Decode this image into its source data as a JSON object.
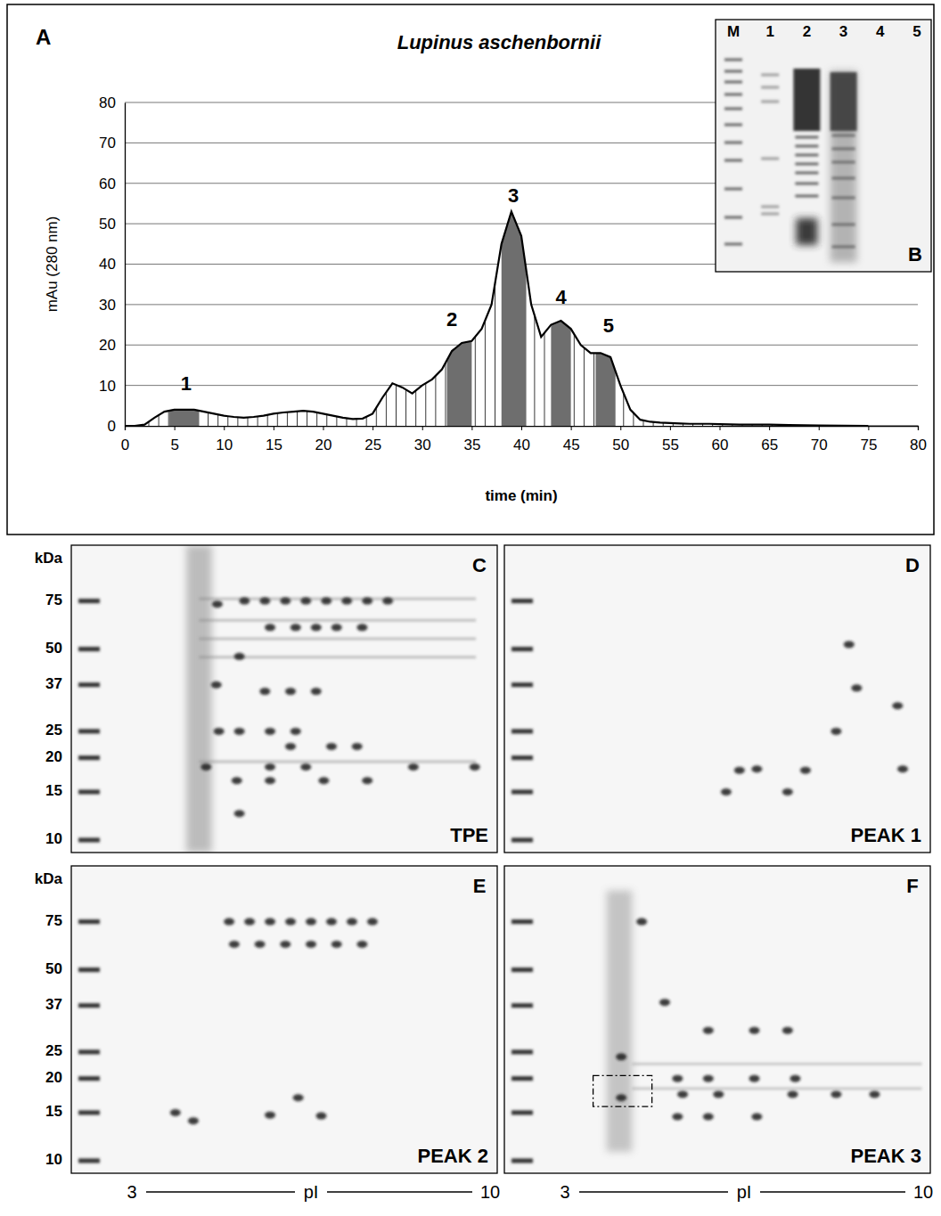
{
  "panel_letter": "A",
  "chart_data": {
    "type": "line",
    "title": "Lupinus aschenbornii",
    "xlabel": "time (min)",
    "ylabel": "mAu (280 nm)",
    "x": [
      0,
      1,
      2,
      3,
      4,
      5,
      6,
      7,
      8,
      9,
      10,
      11,
      12,
      13,
      14,
      15,
      16,
      17,
      18,
      19,
      20,
      21,
      22,
      23,
      24,
      25,
      26,
      27,
      28,
      29,
      30,
      31,
      32,
      33,
      34,
      35,
      36,
      37,
      38,
      39,
      40,
      41,
      42,
      43,
      44,
      45,
      46,
      47,
      48,
      49,
      50,
      51,
      52,
      53,
      54,
      55,
      56,
      57,
      58,
      59,
      60,
      62,
      65,
      67,
      70,
      75
    ],
    "values": [
      0,
      0,
      0.3,
      2,
      3.5,
      4,
      4,
      4,
      3.5,
      3,
      2.5,
      2.2,
      2,
      2.2,
      2.5,
      3,
      3.3,
      3.5,
      3.7,
      3.5,
      3,
      2.5,
      2,
      1.7,
      1.8,
      3,
      7,
      10.5,
      9.5,
      8,
      10,
      11.5,
      14,
      18.5,
      20.5,
      21,
      24,
      30,
      45,
      53,
      47,
      30,
      22,
      25,
      26,
      24,
      20,
      18,
      18,
      17,
      10,
      4,
      1.5,
      1,
      0.8,
      0.7,
      0.6,
      0.5,
      0.5,
      0.5,
      0.4,
      0.3,
      0.3,
      0.2,
      0.1,
      0
    ],
    "xlim": [
      0,
      80
    ],
    "xticks": [
      0,
      5,
      10,
      15,
      20,
      25,
      30,
      35,
      40,
      45,
      50,
      55,
      60,
      65,
      70,
      75,
      80
    ],
    "ylim": [
      0,
      80
    ],
    "yticks": [
      0,
      10,
      20,
      30,
      40,
      50,
      60,
      70,
      80
    ],
    "grid": true,
    "annotations": [
      {
        "text": "1",
        "x": 6.2,
        "y": 10,
        "fraction": [
          4.5,
          7.5
        ]
      },
      {
        "text": "2",
        "x": 33,
        "y": 26,
        "fraction": [
          32.5,
          35
        ]
      },
      {
        "text": "3",
        "x": 39.2,
        "y": 56.5,
        "fraction": [
          38,
          40.5
        ]
      },
      {
        "text": "4",
        "x": 44,
        "y": 31.5,
        "fraction": [
          43,
          45
        ]
      },
      {
        "text": "5",
        "x": 48.8,
        "y": 24.5,
        "fraction": [
          47.5,
          49.5
        ]
      }
    ]
  },
  "inset": {
    "letter": "B",
    "lanes": [
      "M",
      "1",
      "2",
      "3",
      "4",
      "5"
    ]
  },
  "gels": [
    {
      "letter": "C",
      "name": "TPE",
      "type": "scatter",
      "ylabel": "kDa",
      "log": "y",
      "ylim": [
        9,
        120
      ],
      "yticks": [
        75,
        50,
        37,
        25,
        20,
        15,
        10
      ],
      "xlim": [
        3,
        10
      ],
      "xticks": [
        3,
        10
      ],
      "tick_labels": "y",
      "spots": {
        "pI": [
          4.45,
          4.65,
          4.67,
          5.2,
          5.6,
          6.0,
          6.4,
          6.8,
          7.2,
          7.6,
          8.0,
          5.7,
          6.2,
          6.6,
          7.0,
          7.5,
          5.1,
          5.6,
          6.1,
          6.6,
          4.7,
          5.1,
          5.7,
          6.2,
          6.1,
          6.9,
          7.4,
          5.7,
          6.4,
          8.5,
          9.7,
          5.05,
          5.7,
          6.75,
          7.6,
          5.1
        ],
        "kda": [
          18.5,
          37,
          73,
          75,
          75,
          75,
          75,
          75,
          75,
          75,
          75,
          60,
          60,
          60,
          60,
          60,
          47,
          35,
          35,
          35,
          25,
          25,
          25,
          25,
          22,
          22,
          22,
          18.5,
          18.5,
          18.5,
          18.5,
          16.5,
          16.5,
          16.5,
          16.5,
          12.5
        ]
      }
    },
    {
      "letter": "D",
      "name": "PEAK 1",
      "type": "scatter",
      "log": "y",
      "ylim": [
        9,
        120
      ],
      "yticks": [
        75,
        50,
        37,
        25,
        20,
        15,
        10
      ],
      "xlim": [
        3,
        10
      ],
      "xticks": [
        3,
        10
      ],
      "tick_labels": false,
      "spots": {
        "pI": [
          6.41,
          6.75,
          7.7,
          9.6,
          6.15,
          7.35,
          8.55,
          8.7,
          9.5,
          8.3
        ],
        "kda": [
          18,
          18.2,
          18,
          18.2,
          15,
          15,
          52,
          36,
          31,
          25
        ]
      }
    },
    {
      "letter": "E",
      "name": "PEAK 2",
      "type": "scatter",
      "ylabel": "kDa",
      "xlabel": "pI",
      "log": "y",
      "ylim": [
        9,
        120
      ],
      "yticks": [
        75,
        50,
        37,
        25,
        20,
        15,
        10
      ],
      "xlim": [
        3,
        10
      ],
      "xticks": [
        3,
        10
      ],
      "tick_labels": true,
      "spots": {
        "pI": [
          4.9,
          5.3,
          5.7,
          6.1,
          6.5,
          6.9,
          7.3,
          7.7,
          5.0,
          5.5,
          6.0,
          6.5,
          7.0,
          7.5,
          6.25,
          5.7,
          6.7,
          4.2,
          3.85
        ],
        "kda": [
          75,
          75,
          75,
          75,
          75,
          75,
          75,
          75,
          62,
          62,
          62,
          62,
          62,
          62,
          17,
          14.7,
          14.6,
          14,
          15
        ]
      }
    },
    {
      "letter": "F",
      "name": "PEAK 3",
      "type": "scatter",
      "xlabel": "pI",
      "log": "y",
      "ylim": [
        9,
        120
      ],
      "yticks": [
        75,
        50,
        37,
        25,
        20,
        15,
        10
      ],
      "xlim": [
        3,
        10
      ],
      "xticks": [
        3,
        10
      ],
      "tick_labels": "x",
      "spots": {
        "pI": [
          4.5,
          4.95,
          4.1,
          4.1,
          5.2,
          5.8,
          6.7,
          7.5,
          5.3,
          6.0,
          7.45,
          8.3,
          9.05,
          5.8,
          6.7,
          7.35,
          5.2,
          5.8,
          6.75
        ],
        "kda": [
          75,
          38,
          24,
          17,
          20,
          20,
          20,
          20,
          17.5,
          17.5,
          17.5,
          17.5,
          17.5,
          30,
          30,
          30,
          14.5,
          14.5,
          14.5
        ]
      },
      "box": {
        "pI": [
          3.55,
          4.7
        ],
        "kda": [
          15.8,
          20.5
        ]
      }
    }
  ]
}
